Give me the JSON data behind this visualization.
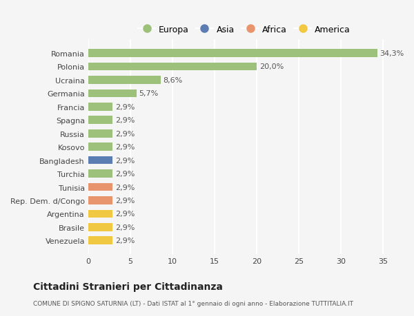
{
  "countries": [
    "Romania",
    "Polonia",
    "Ucraina",
    "Germania",
    "Francia",
    "Spagna",
    "Russia",
    "Kosovo",
    "Bangladesh",
    "Turchia",
    "Tunisia",
    "Rep. Dem. d/Congo",
    "Argentina",
    "Brasile",
    "Venezuela"
  ],
  "values": [
    34.3,
    20.0,
    8.6,
    5.7,
    2.9,
    2.9,
    2.9,
    2.9,
    2.9,
    2.9,
    2.9,
    2.9,
    2.9,
    2.9,
    2.9
  ],
  "labels": [
    "34,3%",
    "20,0%",
    "8,6%",
    "5,7%",
    "2,9%",
    "2,9%",
    "2,9%",
    "2,9%",
    "2,9%",
    "2,9%",
    "2,9%",
    "2,9%",
    "2,9%",
    "2,9%",
    "2,9%"
  ],
  "continents": [
    "Europa",
    "Europa",
    "Europa",
    "Europa",
    "Europa",
    "Europa",
    "Europa",
    "Europa",
    "Asia",
    "Europa",
    "Africa",
    "Africa",
    "America",
    "America",
    "America"
  ],
  "colors": {
    "Europa": "#9dc07a",
    "Asia": "#5b7db1",
    "Africa": "#e8956d",
    "America": "#f0c842"
  },
  "xlim": [
    0,
    37
  ],
  "xticks": [
    0,
    5,
    10,
    15,
    20,
    25,
    30,
    35
  ],
  "title": "Cittadini Stranieri per Cittadinanza",
  "subtitle": "COMUNE DI SPIGNO SATURNIA (LT) - Dati ISTAT al 1° gennaio di ogni anno - Elaborazione TUTTITALIA.IT",
  "background_color": "#f5f5f5",
  "bar_height": 0.6,
  "grid_color": "#ffffff",
  "label_fontsize": 8,
  "tick_fontsize": 8,
  "legend_order": [
    "Europa",
    "Asia",
    "Africa",
    "America"
  ]
}
